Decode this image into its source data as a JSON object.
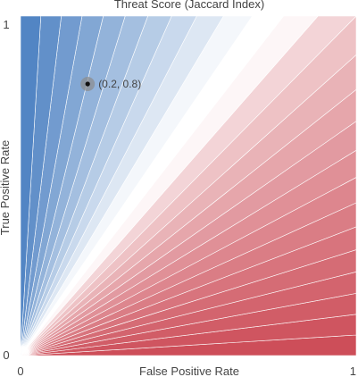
{
  "chart_data": {
    "type": "heatmap",
    "title": "Threat Score (Jaccard Index)",
    "xlabel": "False Positive Rate",
    "ylabel": "True Positive Rate",
    "xlim": [
      0,
      1
    ],
    "ylim": [
      0,
      1
    ],
    "x_ticks": [
      "0",
      "1"
    ],
    "y_ticks": [
      "0",
      "1"
    ],
    "contour_style": "filled diverging contours, blue (high) to white to red (low)",
    "colors": {
      "high": "#4a7fc1",
      "mid": "#ffffff",
      "low": "#cc4b56",
      "grid": "#ffffff"
    },
    "point": {
      "x": 0.2,
      "y": 0.8,
      "label": "(0.2, 0.8)"
    }
  }
}
